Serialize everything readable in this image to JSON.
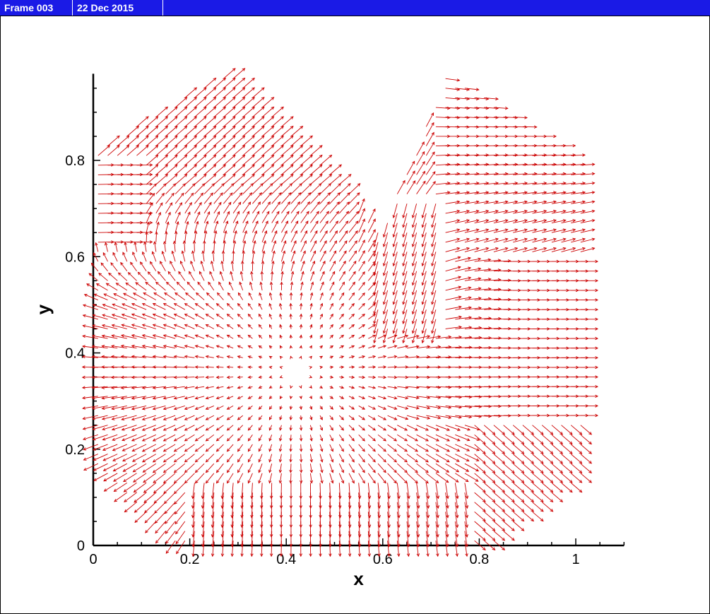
{
  "frame": {
    "label": "Frame 003",
    "date": "22 Dec 2015"
  },
  "chart_data": {
    "type": "vector",
    "xlabel": "x",
    "ylabel": "y",
    "xlim": [
      0,
      1.1
    ],
    "ylim": [
      0,
      0.98
    ],
    "xticks": [
      0,
      0.2,
      0.4,
      0.6,
      0.8,
      1
    ],
    "xtick_labels": [
      "0",
      "0.2",
      "0.4",
      "0.6",
      "0.8",
      "1"
    ],
    "yticks": [
      0,
      0.2,
      0.4,
      0.6,
      0.8
    ],
    "ytick_labels": [
      "0",
      "0.2",
      "0.4",
      "0.6",
      "0.8"
    ],
    "vector_color": "#cc0000",
    "field": {
      "region": "left lobe bounded by top-left ~(0,0.82) to (0.3,0.98) to (0.6,0.66); right lobe (0.73,0.98) to (1.02,0.8); bottom corners cut at (0.15,0) and (1.02,0.15)",
      "grid_spacing": 0.02,
      "notes": "vectors point up-right in upper-left lobe, rightward in right half, downward along bottom edge, spreading outward from center (~0.4,0.35)"
    }
  }
}
